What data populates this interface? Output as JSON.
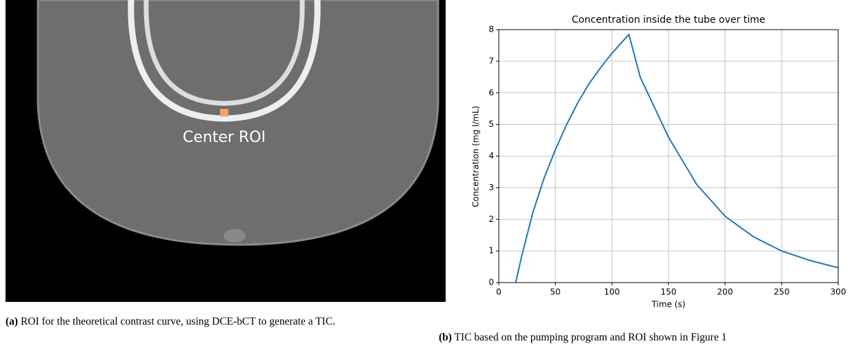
{
  "figure_a": {
    "image_label": "Center ROI",
    "caption_tag": "(a)",
    "caption": "ROI for the theoretical contrast curve, using DCE-bCT to generate a TIC."
  },
  "figure_b": {
    "caption_tag": "(b)",
    "caption": "TIC based on the pumping program and ROI shown in Figure 1"
  },
  "chart_data": {
    "type": "line",
    "title": "Concentration inside the tube over time",
    "x_label": "Time (s)",
    "y_label": "Concentration (mg I/mL)",
    "x": [
      15,
      20,
      30,
      40,
      50,
      60,
      70,
      80,
      90,
      100,
      110,
      115,
      125,
      150,
      175,
      200,
      225,
      250,
      275,
      300
    ],
    "values": [
      0,
      0.8,
      2.2,
      3.3,
      4.2,
      5.0,
      5.7,
      6.3,
      6.8,
      7.25,
      7.65,
      7.85,
      6.5,
      4.6,
      3.1,
      2.1,
      1.45,
      1.0,
      0.7,
      0.47
    ],
    "color": "#1f77b4",
    "xlim": [
      0,
      300
    ],
    "xticks": [
      0,
      50,
      100,
      150,
      200,
      250,
      300
    ],
    "ylim": [
      0,
      8
    ],
    "yticks": [
      0,
      1,
      2,
      3,
      4,
      5,
      6,
      7,
      8
    ],
    "grid": true
  }
}
